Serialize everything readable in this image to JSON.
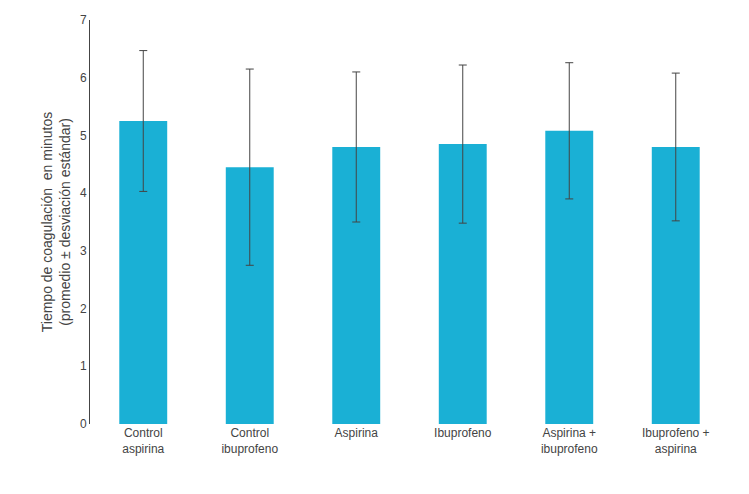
{
  "chart_data": {
    "type": "bar",
    "categories": [
      "Control\naspirina",
      "Control\nibuprofeno",
      "Aspirina",
      "Ibuprofeno",
      "Aspirina +\nibuprofeno",
      "Ibuprofeno +\naspirina"
    ],
    "values": [
      5.25,
      4.45,
      4.8,
      4.85,
      5.08,
      4.8
    ],
    "errors": [
      1.22,
      1.7,
      1.3,
      1.37,
      1.18,
      1.28
    ],
    "color": "#1ab0d5",
    "ylabel": "Tiempo de coagulación  en minutos\n(promedio ± desviación estándar)",
    "ylim": [
      0,
      7
    ],
    "yticks": [
      0,
      1,
      2,
      3,
      4,
      5,
      6,
      7
    ],
    "grid": false
  }
}
